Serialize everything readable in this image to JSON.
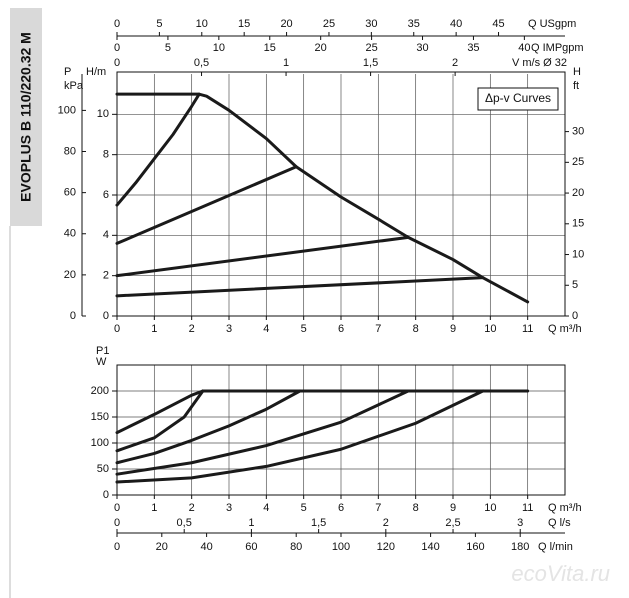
{
  "side_label": "EVOPLUS B 110/220.32 M",
  "watermark": "ecoVita.ru",
  "chart_data": [
    {
      "type": "line",
      "legend": "Δp-v Curves",
      "x_label": "Q m³/h",
      "y_label": "H/m",
      "color": "#1a1a1a",
      "grid": true,
      "xlim": [
        0,
        12
      ],
      "xticks": [
        0,
        1,
        2,
        3,
        4,
        5,
        6,
        7,
        8,
        9,
        10,
        11
      ],
      "ylim": [
        0,
        12
      ],
      "yticks": [
        0,
        2,
        4,
        6,
        8,
        10
      ],
      "axes": [
        {
          "label": "Q USgpm",
          "lim": [
            0,
            52.84
          ],
          "ticks": [
            0,
            5,
            10,
            15,
            20,
            25,
            30,
            35,
            40,
            45
          ]
        },
        {
          "label": "Q IMPgpm",
          "lim": [
            0,
            43.99
          ],
          "ticks": [
            0,
            5,
            10,
            15,
            20,
            25,
            30,
            35,
            40
          ]
        },
        {
          "label": "V m/s Ø 32",
          "lim": [
            0,
            2.65
          ],
          "ticks": [
            0,
            {
              "value": 0.5,
              "label": "0,5"
            },
            1,
            {
              "value": 1.5,
              "label": "1,5"
            },
            2
          ]
        },
        {
          "label_lines": [
            "P",
            "kPa"
          ],
          "lim": [
            0,
            117.7
          ],
          "ticks": [
            0,
            20,
            40,
            60,
            80,
            100
          ]
        },
        {
          "label_lines": [
            "H",
            "ft"
          ],
          "lim": [
            0,
            39.37
          ],
          "ticks": [
            0,
            5,
            10,
            15,
            20,
            25,
            30
          ]
        }
      ],
      "series": [
        {
          "x": [
            0,
            2.2,
            2.4,
            3,
            4,
            4.8,
            6,
            7,
            7.8,
            9,
            9.8,
            11
          ],
          "values": [
            11,
            11,
            10.9,
            10.2,
            8.8,
            7.4,
            5.9,
            4.8,
            3.9,
            2.8,
            1.9,
            0.7
          ]
        },
        {
          "x": [
            0,
            0.5,
            1,
            1.5,
            2,
            2.2
          ],
          "values": [
            5.5,
            6.6,
            7.8,
            9.0,
            10.4,
            11
          ]
        },
        {
          "x": [
            0,
            4.8
          ],
          "values": [
            3.6,
            7.4
          ]
        },
        {
          "x": [
            0,
            7.8
          ],
          "values": [
            2,
            3.9
          ]
        },
        {
          "x": [
            0,
            9.8
          ],
          "values": [
            1,
            1.9
          ]
        }
      ]
    },
    {
      "type": "line",
      "x_label": "Q m³/h",
      "y_label_lines": [
        "P1",
        "W"
      ],
      "color": "#1a1a1a",
      "grid": true,
      "xlim": [
        0,
        12
      ],
      "xticks": [
        0,
        1,
        2,
        3,
        4,
        5,
        6,
        7,
        8,
        9,
        10,
        11
      ],
      "ylim": [
        0,
        250
      ],
      "yticks": [
        0,
        50,
        100,
        150,
        200
      ],
      "axes": [
        {
          "label": "Q l/s",
          "lim": [
            0,
            3.333
          ],
          "ticks": [
            0,
            {
              "value": 0.5,
              "label": "0,5"
            },
            1,
            {
              "value": 1.5,
              "label": "1,5"
            },
            2,
            {
              "value": 2.5,
              "label": "2,5"
            },
            3
          ]
        },
        {
          "label": "Q l/min",
          "lim": [
            0,
            200
          ],
          "ticks": [
            0,
            20,
            40,
            60,
            80,
            100,
            120,
            140,
            160,
            180
          ]
        }
      ],
      "series": [
        {
          "x": [
            2.3,
            11
          ],
          "values": [
            200,
            200
          ]
        },
        {
          "x": [
            0,
            1,
            2,
            2.3
          ],
          "values": [
            120,
            155,
            192,
            200
          ]
        },
        {
          "x": [
            0,
            1,
            1.8,
            2.3
          ],
          "values": [
            85,
            110,
            150,
            200
          ]
        },
        {
          "x": [
            0,
            1,
            2,
            3,
            4,
            4.9
          ],
          "values": [
            62,
            80,
            105,
            133,
            165,
            200
          ]
        },
        {
          "x": [
            0,
            2,
            4,
            6,
            7.8
          ],
          "values": [
            40,
            62,
            95,
            140,
            200
          ]
        },
        {
          "x": [
            0,
            2,
            4,
            6,
            8,
            9.8
          ],
          "values": [
            25,
            33,
            55,
            88,
            138,
            200
          ]
        }
      ]
    }
  ]
}
